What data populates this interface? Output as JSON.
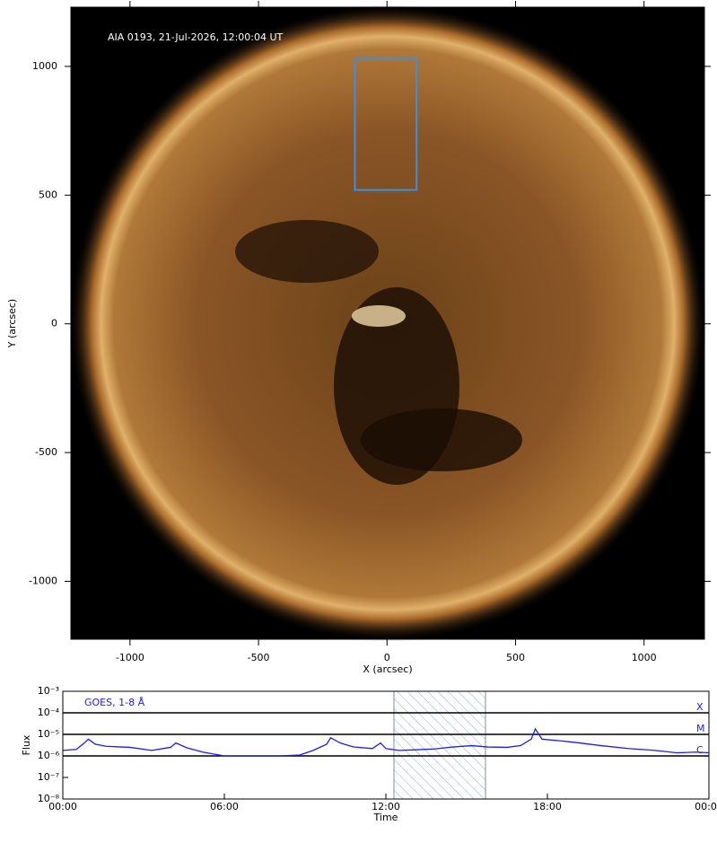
{
  "chart_data": [
    {
      "type": "image",
      "annotation": "AIA 0193, 21-Jul-2026, 12:00:04 UT",
      "xlabel": "X (arcsec)",
      "ylabel": "Y (arcsec)",
      "xlim": [
        -1230,
        1235
      ],
      "ylim": [
        -1225,
        1230
      ],
      "xticks": [
        -1000,
        -500,
        0,
        500,
        1000
      ],
      "yticks": [
        -1000,
        -500,
        0,
        500,
        1000
      ],
      "box": {
        "x": [
          -125,
          115
        ],
        "y": [
          520,
          1030
        ],
        "color": "#3a8fe8"
      }
    },
    {
      "type": "line",
      "log_y": true,
      "xlabel": "Time",
      "ylabel": "Flux",
      "xlim": [
        0,
        24
      ],
      "xticks": [
        {
          "value": 0,
          "label": "00:00"
        },
        {
          "value": 6,
          "label": "06:00"
        },
        {
          "value": 12,
          "label": "12:00"
        },
        {
          "value": 18,
          "label": "18:00"
        },
        {
          "value": 24,
          "label": "00:00"
        }
      ],
      "ylim": [
        1e-08,
        0.001
      ],
      "yticks": [
        {
          "value": 1e-08,
          "label": "10⁻⁸"
        },
        {
          "value": 1e-07,
          "label": "10⁻⁷"
        },
        {
          "value": 1e-06,
          "label": "10⁻⁶"
        },
        {
          "value": 1e-05,
          "label": "10⁻⁵"
        },
        {
          "value": 0.0001,
          "label": "10⁻⁴"
        },
        {
          "value": 0.001,
          "label": "10⁻³"
        }
      ],
      "levels": [
        {
          "value": 0.0001,
          "label": "X"
        },
        {
          "value": 1e-05,
          "label": "M"
        },
        {
          "value": 1e-06,
          "label": "C"
        }
      ],
      "shade": [
        12.3,
        15.7
      ],
      "x": [
        0,
        0.5,
        0.8,
        0.95,
        1.2,
        1.6,
        2.5,
        3.3,
        4.0,
        4.2,
        4.6,
        5.2,
        6.0,
        7.0,
        8.0,
        8.8,
        9.3,
        9.8,
        9.95,
        10.3,
        10.8,
        11.5,
        11.8,
        12.0,
        12.5,
        13.0,
        13.8,
        14.5,
        15.2,
        15.8,
        16.5,
        17.0,
        17.4,
        17.55,
        17.8,
        18.5,
        19.2,
        20.0,
        21.0,
        22.0,
        22.8,
        23.5,
        24
      ],
      "series": [
        {
          "name": "GOES, 1-8 Å",
          "color": "#1a1aff",
          "values": [
            1.8e-06,
            2e-06,
            4e-06,
            6e-06,
            3.5e-06,
            2.8e-06,
            2.5e-06,
            1.8e-06,
            2.5e-06,
            4e-06,
            2.4e-06,
            1.5e-06,
            1e-06,
            1e-06,
            1e-06,
            1.1e-06,
            1.8e-06,
            3.5e-06,
            7e-06,
            4e-06,
            2.6e-06,
            2.2e-06,
            4e-06,
            2.2e-06,
            1.8e-06,
            1.9e-06,
            2.1e-06,
            2.6e-06,
            3e-06,
            2.6e-06,
            2.5e-06,
            3e-06,
            6e-06,
            1.8e-05,
            6e-06,
            5e-06,
            4e-06,
            3e-06,
            2.2e-06,
            1.8e-06,
            1.4e-06,
            1.5e-06,
            1.4e-06
          ]
        }
      ]
    }
  ]
}
